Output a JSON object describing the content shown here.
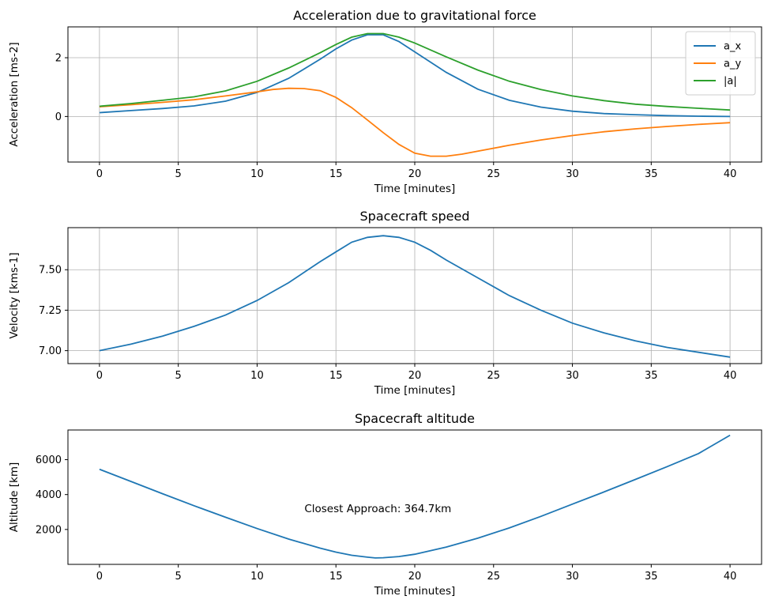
{
  "chart_data": [
    {
      "type": "line",
      "title": "Acceleration due to gravitational force",
      "xlabel": "Time [minutes]",
      "ylabel": "Acceleration [ms-2]",
      "xlim": [
        -2,
        42
      ],
      "ylim": [
        -1.55,
        3.05
      ],
      "xticks": [
        0,
        5,
        10,
        15,
        20,
        25,
        30,
        35,
        40
      ],
      "yticks": [
        0,
        2
      ],
      "grid": true,
      "legend": "top-right",
      "series": [
        {
          "name": "a_x",
          "color": "#1f77b4",
          "x": [
            0,
            2,
            4,
            6,
            8,
            10,
            12,
            14,
            15,
            16,
            17,
            18,
            19,
            20,
            22,
            24,
            26,
            28,
            30,
            32,
            34,
            36,
            38,
            40
          ],
          "y": [
            0.13,
            0.2,
            0.27,
            0.36,
            0.52,
            0.82,
            1.3,
            1.95,
            2.3,
            2.6,
            2.78,
            2.78,
            2.55,
            2.2,
            1.5,
            0.93,
            0.55,
            0.32,
            0.18,
            0.1,
            0.06,
            0.03,
            0.01,
            0.0
          ]
        },
        {
          "name": "a_y",
          "color": "#ff7f0e",
          "x": [
            0,
            2,
            4,
            6,
            8,
            10,
            11,
            12,
            13,
            14,
            15,
            16,
            17,
            18,
            19,
            20,
            21,
            22,
            23,
            24,
            26,
            28,
            30,
            32,
            34,
            36,
            38,
            40
          ],
          "y": [
            0.33,
            0.4,
            0.48,
            0.57,
            0.7,
            0.84,
            0.92,
            0.96,
            0.95,
            0.88,
            0.65,
            0.3,
            -0.12,
            -0.55,
            -0.95,
            -1.25,
            -1.35,
            -1.35,
            -1.28,
            -1.18,
            -0.98,
            -0.8,
            -0.65,
            -0.52,
            -0.42,
            -0.34,
            -0.27,
            -0.21
          ]
        },
        {
          "name": "|a|",
          "color": "#2ca02c",
          "x": [
            0,
            2,
            4,
            6,
            8,
            10,
            12,
            14,
            15,
            16,
            17,
            18,
            19,
            20,
            22,
            24,
            26,
            28,
            30,
            32,
            34,
            36,
            38,
            40
          ],
          "y": [
            0.35,
            0.44,
            0.55,
            0.67,
            0.87,
            1.2,
            1.65,
            2.17,
            2.45,
            2.7,
            2.82,
            2.82,
            2.7,
            2.5,
            2.03,
            1.58,
            1.2,
            0.92,
            0.7,
            0.54,
            0.42,
            0.34,
            0.28,
            0.22
          ]
        }
      ]
    },
    {
      "type": "line",
      "title": "Spacecraft speed",
      "xlabel": "Time [minutes]",
      "ylabel": "Velocity [kms-1]",
      "xlim": [
        -2,
        42
      ],
      "ylim": [
        6.92,
        7.76
      ],
      "xticks": [
        0,
        5,
        10,
        15,
        20,
        25,
        30,
        35,
        40
      ],
      "yticks": [
        7.0,
        7.25,
        7.5
      ],
      "ytick_labels": [
        "7.00",
        "7.25",
        "7.50"
      ],
      "grid": true,
      "series": [
        {
          "color": "#1f77b4",
          "x": [
            0,
            2,
            4,
            6,
            8,
            10,
            12,
            14,
            15,
            16,
            17,
            18,
            19,
            20,
            21,
            22,
            24,
            26,
            28,
            30,
            32,
            34,
            36,
            38,
            40
          ],
          "y": [
            7.0,
            7.04,
            7.09,
            7.15,
            7.22,
            7.31,
            7.42,
            7.55,
            7.61,
            7.67,
            7.7,
            7.71,
            7.7,
            7.67,
            7.62,
            7.56,
            7.45,
            7.34,
            7.25,
            7.17,
            7.11,
            7.06,
            7.02,
            6.99,
            6.96
          ]
        }
      ]
    },
    {
      "type": "line",
      "title": "Spacecraft altitude",
      "xlabel": "Time [minutes]",
      "ylabel": "Altitude [km]",
      "xlim": [
        -2,
        42
      ],
      "ylim": [
        0,
        7700
      ],
      "xticks": [
        0,
        5,
        10,
        15,
        20,
        25,
        30,
        35,
        40
      ],
      "yticks": [
        2000,
        4000,
        6000
      ],
      "grid": false,
      "annotation": "Closest Approach: 364.7km",
      "series": [
        {
          "color": "#1f77b4",
          "x": [
            0,
            2,
            4,
            6,
            8,
            10,
            12,
            14,
            15,
            16,
            17,
            17.5,
            18,
            19,
            20,
            22,
            24,
            26,
            28,
            30,
            32,
            34,
            36,
            38,
            40
          ],
          "y": [
            5450,
            4750,
            4050,
            3360,
            2700,
            2050,
            1450,
            930,
            700,
            520,
            410,
            365,
            380,
            450,
            580,
            990,
            1500,
            2090,
            2750,
            3450,
            4150,
            4870,
            5600,
            6350,
            7400
          ]
        }
      ]
    }
  ]
}
